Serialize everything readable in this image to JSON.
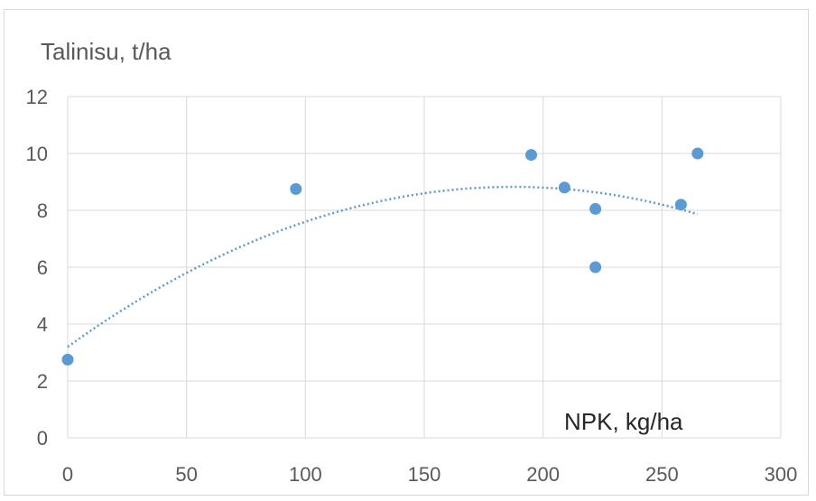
{
  "chart_data": {
    "type": "scatter",
    "title": "",
    "ylabel": "Talinisu, t/ha",
    "xlabel": "NPK, kg/ha",
    "xlim": [
      0,
      300
    ],
    "ylim": [
      0,
      12
    ],
    "x_ticks": [
      0,
      50,
      100,
      150,
      200,
      250,
      300
    ],
    "y_ticks": [
      0,
      2,
      4,
      6,
      8,
      10,
      12
    ],
    "grid": true,
    "legend": "none",
    "series": [
      {
        "points": [
          {
            "x": 0,
            "y": 2.75
          },
          {
            "x": 96,
            "y": 8.75
          },
          {
            "x": 195,
            "y": 9.95
          },
          {
            "x": 209,
            "y": 8.8
          },
          {
            "x": 222,
            "y": 8.05
          },
          {
            "x": 222,
            "y": 6.0
          },
          {
            "x": 258,
            "y": 8.2
          },
          {
            "x": 265,
            "y": 10.0
          }
        ]
      }
    ],
    "trendline": {
      "kind": "polynomial",
      "order": 2,
      "style": "dotted",
      "x_range": [
        0,
        265
      ],
      "coefficients": [
        3.2,
        0.06,
        -0.00016
      ]
    },
    "colors": {
      "marker": "#5b9bd5",
      "trendline": "#5b9bd5",
      "grid": "#d9d9d9",
      "text": "#595959",
      "xlabel_text": "#262626"
    }
  }
}
